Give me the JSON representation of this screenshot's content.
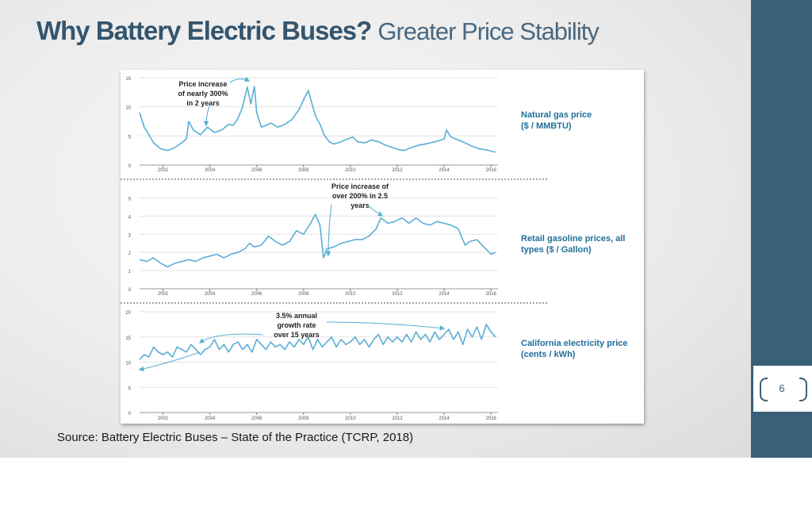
{
  "slide": {
    "title_bold": "Why Battery Electric Buses?",
    "title_light": "Greater Price Stability",
    "source": "Source: Battery Electric Buses – State of the Practice (TCRP, 2018)",
    "page_number": "6",
    "colors": {
      "title": "#34556e",
      "sidebar": "#3a5f78",
      "line": "#5aaed6",
      "panel_label": "#1f6f9a"
    }
  },
  "chart_data": [
    {
      "type": "line",
      "label": [
        "Natural gas price",
        "($ / MMBTU)"
      ],
      "x_ticks": [
        "2002",
        "2004",
        "2006",
        "2008",
        "2010",
        "2012",
        "2014",
        "2016"
      ],
      "y_ticks": [
        "0",
        "5",
        "10",
        "15"
      ],
      "ylim": [
        0,
        15
      ],
      "xlim": [
        2001,
        2016.3
      ],
      "annotation": [
        "Price increase",
        "of nearly 300%",
        "in 2 years"
      ],
      "series": [
        {
          "x": [
            2001.0,
            2001.2,
            2001.4,
            2001.6,
            2001.9,
            2002.2,
            2002.5,
            2002.8,
            2003.0,
            2003.1,
            2003.3,
            2003.6,
            2003.9,
            2004.2,
            2004.5,
            2004.8,
            2005.0,
            2005.2,
            2005.4,
            2005.6,
            2005.75,
            2005.9,
            2006.0,
            2006.2,
            2006.4,
            2006.6,
            2006.9,
            2007.2,
            2007.5,
            2007.8,
            2008.0,
            2008.2,
            2008.4,
            2008.5,
            2008.7,
            2008.9,
            2009.1,
            2009.3,
            2009.6,
            2009.9,
            2010.1,
            2010.3,
            2010.6,
            2010.9,
            2011.2,
            2011.5,
            2011.8,
            2012.1,
            2012.3,
            2012.6,
            2012.9,
            2013.2,
            2013.5,
            2013.8,
            2014.0,
            2014.1,
            2014.3,
            2014.6,
            2014.9,
            2015.2,
            2015.5,
            2015.8,
            2016.0,
            2016.2
          ],
          "y": [
            9.0,
            6.5,
            5.2,
            3.8,
            2.8,
            2.5,
            3.0,
            3.8,
            4.5,
            7.5,
            6.0,
            5.2,
            6.5,
            5.6,
            6.0,
            7.0,
            6.8,
            8.0,
            10.0,
            13.4,
            10.5,
            13.5,
            9.0,
            6.5,
            6.8,
            7.2,
            6.5,
            7.0,
            7.8,
            9.5,
            11.2,
            12.8,
            10.0,
            8.5,
            7.0,
            5.0,
            4.0,
            3.6,
            4.0,
            4.5,
            4.8,
            4.0,
            3.8,
            4.3,
            4.0,
            3.4,
            3.0,
            2.6,
            2.5,
            3.0,
            3.4,
            3.6,
            3.9,
            4.2,
            4.5,
            6.0,
            4.8,
            4.3,
            3.8,
            3.2,
            2.8,
            2.6,
            2.4,
            2.2
          ]
        }
      ]
    },
    {
      "type": "line",
      "label": [
        "Retail gasoline prices, all",
        "types ($ / Gallon)"
      ],
      "x_ticks": [
        "2002",
        "2004",
        "2006",
        "2008",
        "2010",
        "2012",
        "2014",
        "2016"
      ],
      "y_ticks": [
        "0",
        "1",
        "2",
        "3",
        "4",
        "5"
      ],
      "ylim": [
        0,
        5.5
      ],
      "xlim": [
        2001,
        2016.3
      ],
      "annotation": [
        "Price increase of",
        "over 200% in 2.5",
        "years"
      ],
      "series": [
        {
          "x": [
            2001.0,
            2001.3,
            2001.6,
            2001.9,
            2002.2,
            2002.5,
            2002.8,
            2003.1,
            2003.4,
            2003.7,
            2004.0,
            2004.3,
            2004.6,
            2004.9,
            2005.2,
            2005.5,
            2005.7,
            2005.9,
            2006.2,
            2006.5,
            2006.8,
            2007.1,
            2007.4,
            2007.7,
            2008.0,
            2008.3,
            2008.5,
            2008.7,
            2008.85,
            2009.0,
            2009.3,
            2009.6,
            2009.9,
            2010.2,
            2010.5,
            2010.8,
            2011.1,
            2011.3,
            2011.6,
            2011.9,
            2012.2,
            2012.5,
            2012.8,
            2013.1,
            2013.4,
            2013.7,
            2014.0,
            2014.3,
            2014.6,
            2014.9,
            2015.1,
            2015.4,
            2015.7,
            2016.0,
            2016.2
          ],
          "y": [
            1.6,
            1.5,
            1.7,
            1.4,
            1.2,
            1.4,
            1.5,
            1.6,
            1.5,
            1.7,
            1.8,
            1.9,
            1.7,
            1.9,
            2.0,
            2.2,
            2.5,
            2.3,
            2.4,
            2.9,
            2.6,
            2.4,
            2.6,
            3.2,
            3.0,
            3.6,
            4.1,
            3.5,
            1.7,
            2.2,
            2.3,
            2.5,
            2.6,
            2.7,
            2.7,
            2.9,
            3.3,
            3.9,
            3.6,
            3.7,
            3.9,
            3.6,
            3.9,
            3.6,
            3.5,
            3.7,
            3.6,
            3.5,
            3.3,
            2.4,
            2.6,
            2.7,
            2.3,
            1.9,
            2.0
          ]
        }
      ]
    },
    {
      "type": "line",
      "label": [
        "California electricity price",
        "(cents  / kWh)"
      ],
      "x_ticks": [
        "2002",
        "2004",
        "2006",
        "2008",
        "2010",
        "2012",
        "2014",
        "2016"
      ],
      "y_ticks": [
        "0",
        "5",
        "10",
        "15",
        "20"
      ],
      "ylim": [
        0,
        20
      ],
      "xlim": [
        2001,
        2016.3
      ],
      "annotation": [
        "3.5% annual",
        "growth rate",
        "over 15  years"
      ],
      "series": [
        {
          "x": [
            2001.0,
            2001.2,
            2001.4,
            2001.6,
            2001.8,
            2002.0,
            2002.2,
            2002.4,
            2002.6,
            2002.8,
            2003.0,
            2003.2,
            2003.4,
            2003.6,
            2003.8,
            2004.0,
            2004.2,
            2004.4,
            2004.6,
            2004.8,
            2005.0,
            2005.2,
            2005.4,
            2005.6,
            2005.8,
            2006.0,
            2006.2,
            2006.4,
            2006.6,
            2006.8,
            2007.0,
            2007.2,
            2007.4,
            2007.6,
            2007.8,
            2008.0,
            2008.2,
            2008.4,
            2008.6,
            2008.8,
            2009.0,
            2009.2,
            2009.4,
            2009.6,
            2009.8,
            2010.0,
            2010.2,
            2010.4,
            2010.6,
            2010.8,
            2011.0,
            2011.2,
            2011.4,
            2011.6,
            2011.8,
            2012.0,
            2012.2,
            2012.4,
            2012.6,
            2012.8,
            2013.0,
            2013.2,
            2013.4,
            2013.6,
            2013.8,
            2014.0,
            2014.2,
            2014.4,
            2014.6,
            2014.8,
            2015.0,
            2015.2,
            2015.4,
            2015.6,
            2015.8,
            2016.0,
            2016.2
          ],
          "y": [
            10.5,
            11.5,
            11.0,
            13.0,
            12.0,
            11.5,
            12.0,
            11.0,
            13.0,
            12.5,
            12.0,
            13.5,
            12.5,
            11.5,
            12.5,
            13.0,
            14.5,
            12.5,
            13.5,
            12.0,
            13.5,
            14.0,
            12.5,
            13.5,
            12.0,
            14.5,
            13.5,
            12.5,
            14.0,
            13.0,
            13.5,
            12.5,
            14.0,
            13.0,
            14.5,
            13.5,
            15.0,
            12.5,
            14.5,
            13.0,
            14.0,
            15.0,
            13.0,
            14.5,
            13.5,
            14.0,
            15.0,
            13.5,
            14.5,
            13.0,
            14.5,
            15.5,
            13.5,
            15.0,
            14.0,
            15.0,
            14.0,
            15.5,
            14.0,
            16.0,
            14.5,
            15.5,
            14.0,
            16.0,
            14.5,
            15.5,
            16.5,
            14.5,
            16.0,
            13.5,
            16.5,
            15.0,
            17.0,
            14.5,
            17.5,
            16.0,
            15.0
          ]
        }
      ]
    }
  ]
}
